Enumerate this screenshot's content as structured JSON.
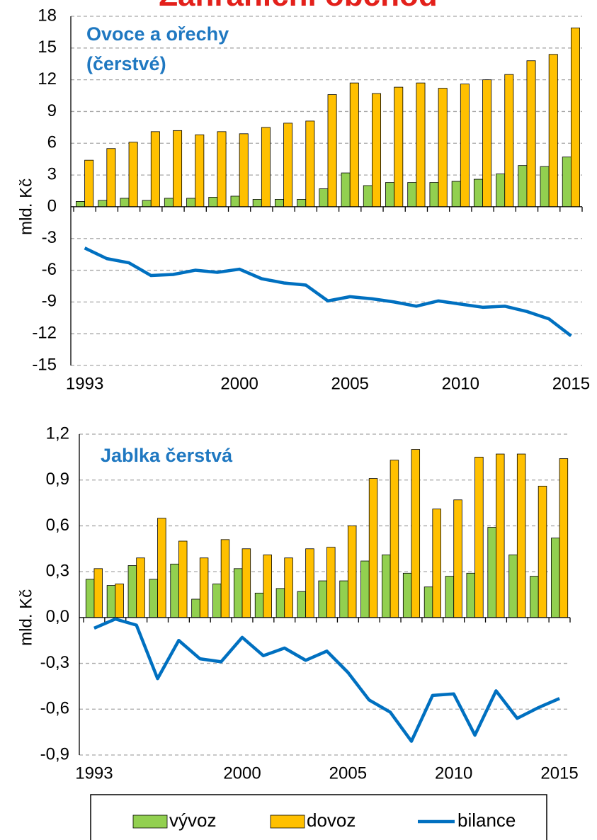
{
  "title": "Zahraniční obchod",
  "chart_data": [
    {
      "type": "bar-line",
      "annotation": [
        "Ovoce a ořechy",
        "(čerstvé)"
      ],
      "y_label": "mld. Kč",
      "categories": [
        "1993",
        null,
        null,
        null,
        null,
        null,
        null,
        "2000",
        null,
        null,
        null,
        null,
        "2005",
        null,
        null,
        null,
        null,
        "2010",
        null,
        null,
        null,
        null,
        "2015"
      ],
      "series": [
        {
          "kind": "bar",
          "color": "#92d050",
          "values": [
            0.5,
            0.6,
            0.8,
            0.6,
            0.8,
            0.8,
            0.9,
            1.0,
            0.7,
            0.7,
            0.7,
            1.7,
            3.2,
            2.0,
            2.3,
            2.3,
            2.3,
            2.4,
            2.6,
            3.1,
            3.9,
            3.8,
            4.7
          ]
        },
        {
          "kind": "bar",
          "color": "#ffc000",
          "values": [
            4.4,
            5.5,
            6.1,
            7.1,
            7.2,
            6.8,
            7.1,
            6.9,
            7.5,
            7.9,
            8.1,
            10.6,
            11.7,
            10.7,
            11.3,
            11.7,
            11.2,
            11.6,
            12.0,
            12.5,
            13.8,
            14.4,
            16.9
          ]
        },
        {
          "kind": "line",
          "color": "#0070c0",
          "values": [
            -3.9,
            -4.9,
            -5.3,
            -6.5,
            -6.4,
            -6.0,
            -6.2,
            -5.9,
            -6.8,
            -7.2,
            -7.4,
            -8.9,
            -8.5,
            -8.7,
            -9.0,
            -9.4,
            -8.9,
            -9.2,
            -9.5,
            -9.4,
            -9.9,
            -10.6,
            -12.2
          ]
        }
      ],
      "ylim": [
        -15,
        18
      ],
      "yticks": [
        -15,
        -12,
        -9,
        -6,
        -3,
        0,
        3,
        6,
        9,
        12,
        15,
        18
      ],
      "grid": true
    },
    {
      "type": "bar-line",
      "annotation": [
        "Jablka čerstvá"
      ],
      "y_label": "mld. Kč",
      "categories": [
        "1993",
        null,
        null,
        null,
        null,
        null,
        null,
        "2000",
        null,
        null,
        null,
        null,
        "2005",
        null,
        null,
        null,
        null,
        "2010",
        null,
        null,
        null,
        null,
        "2015"
      ],
      "series": [
        {
          "kind": "bar",
          "name": "vývoz",
          "color": "#92d050",
          "values": [
            0.25,
            0.21,
            0.34,
            0.25,
            0.35,
            0.12,
            0.22,
            0.32,
            0.16,
            0.19,
            0.17,
            0.24,
            0.24,
            0.37,
            0.41,
            0.29,
            0.2,
            0.27,
            0.29,
            0.59,
            0.41,
            0.27,
            0.52
          ]
        },
        {
          "kind": "bar",
          "name": "dovoz",
          "color": "#ffc000",
          "values": [
            0.32,
            0.22,
            0.39,
            0.65,
            0.5,
            0.39,
            0.51,
            0.45,
            0.41,
            0.39,
            0.45,
            0.46,
            0.6,
            0.91,
            1.03,
            1.1,
            0.71,
            0.77,
            1.05,
            1.07,
            1.07,
            0.86,
            1.04
          ]
        },
        {
          "kind": "line",
          "name": "bilance",
          "color": "#0070c0",
          "values": [
            -0.07,
            -0.01,
            -0.05,
            -0.4,
            -0.15,
            -0.27,
            -0.29,
            -0.13,
            -0.25,
            -0.2,
            -0.28,
            -0.22,
            -0.36,
            -0.54,
            -0.62,
            -0.81,
            -0.51,
            -0.5,
            -0.77,
            -0.48,
            -0.66,
            -0.59,
            -0.53
          ]
        }
      ],
      "ylim": [
        -0.9,
        1.2
      ],
      "yticks": [
        {
          "value": -0.9,
          "label": "-0,9"
        },
        {
          "value": -0.6,
          "label": "-0,6"
        },
        {
          "value": -0.3,
          "label": "-0,3"
        },
        {
          "value": 0,
          "label": "0,0"
        },
        {
          "value": 0.3,
          "label": "0,3"
        },
        {
          "value": 0.6,
          "label": "0,6"
        },
        {
          "value": 0.9,
          "label": "0,9"
        },
        {
          "value": 1.2,
          "label": "1,2"
        }
      ],
      "grid": true,
      "legend": "bottom"
    }
  ]
}
